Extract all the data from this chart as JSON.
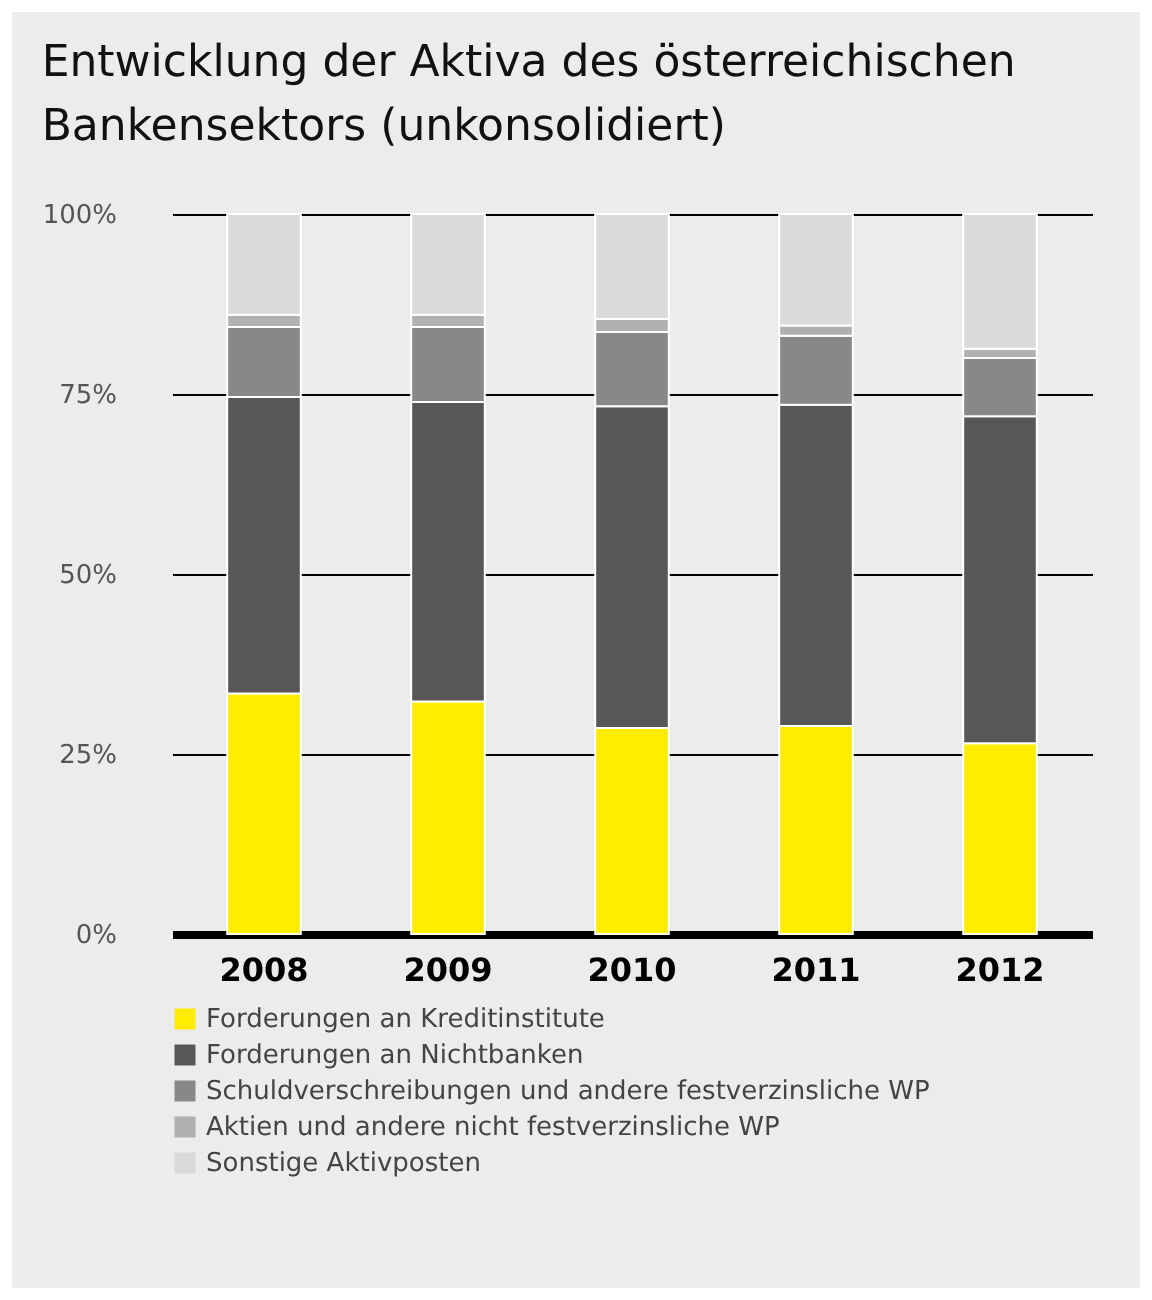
{
  "chart_data": {
    "type": "bar",
    "title": "Entwicklung der Aktiva des österreichischen Bankensektors (unkonsolidiert)",
    "categories": [
      "2008",
      "2009",
      "2010",
      "2011",
      "2012"
    ],
    "stacked": true,
    "series": [
      {
        "name": "Forderungen an Kreditinstitute",
        "color": "#ffed00",
        "values": [
          33.4,
          32.3,
          28.6,
          28.9,
          26.5
        ]
      },
      {
        "name": "Forderungen an Nichtbanken",
        "color": "#575757",
        "values": [
          41.2,
          41.6,
          44.7,
          44.6,
          45.4
        ]
      },
      {
        "name": "Schuldverschreibungen und andere festverzinsliche WP",
        "color": "#888888",
        "values": [
          9.7,
          10.4,
          10.3,
          9.6,
          8.1
        ]
      },
      {
        "name": "Aktien und andere nicht festverzinsliche WP",
        "color": "#b0b0b0",
        "values": [
          1.7,
          1.7,
          1.8,
          1.4,
          1.3
        ]
      },
      {
        "name": "Sonstige Aktivposten",
        "color": "#dadada",
        "values": [
          14.0,
          14.0,
          14.6,
          15.5,
          18.7
        ]
      }
    ],
    "ylim": [
      0,
      100
    ],
    "yticks": [
      {
        "value": 0,
        "label": "0%"
      },
      {
        "value": 25,
        "label": "25%"
      },
      {
        "value": 50,
        "label": "50%"
      },
      {
        "value": 75,
        "label": "75%"
      },
      {
        "value": 100,
        "label": "100%"
      }
    ],
    "grid": "y",
    "legend": "bottom"
  }
}
